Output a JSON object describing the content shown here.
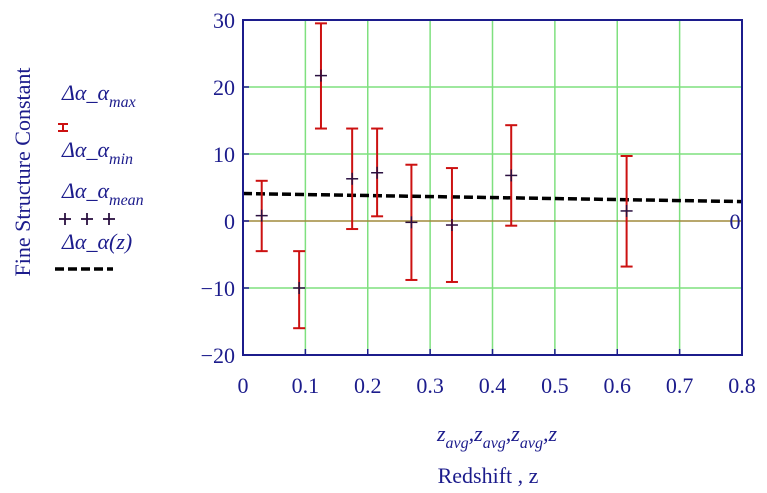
{
  "chart_data": {
    "type": "scatter",
    "ylabel": "Fine Structure Constant",
    "xlabel": "Redshift , z",
    "x_expression": {
      "parts": [
        "z",
        "avg",
        ",",
        "z",
        "avg",
        ",",
        "z",
        "avg",
        ",",
        "z"
      ]
    },
    "xlim": [
      0,
      0.8
    ],
    "ylim": [
      -20,
      30
    ],
    "x_ticks": [
      "0",
      "0.1",
      "0.2",
      "0.3",
      "0.4",
      "0.5",
      "0.6",
      "0.7",
      "0.8"
    ],
    "y_ticks": [
      "30",
      "20",
      "10",
      "0",
      "−10",
      "−20"
    ],
    "zero_marker_label": "0",
    "grid": true,
    "legend_placement": "left",
    "legend": [
      {
        "prefix": "Δα_α",
        "sub": "max",
        "suffix": "",
        "marker": "error-cap"
      },
      {
        "prefix": "Δα_α",
        "sub": "min",
        "suffix": "",
        "marker": "none"
      },
      {
        "prefix": "Δα_α",
        "sub": "mean",
        "suffix": "",
        "marker": "plus"
      },
      {
        "prefix": "Δα_α",
        "sub": "",
        "suffix": "(z)",
        "marker": "dashed"
      }
    ],
    "points": [
      {
        "z": 0.03,
        "max": 6,
        "min": -4.5,
        "mean": 0.8
      },
      {
        "z": 0.09,
        "max": -4.5,
        "min": -16,
        "mean": -10
      },
      {
        "z": 0.125,
        "max": 29.5,
        "min": 13.8,
        "mean": 21.7
      },
      {
        "z": 0.175,
        "max": 13.8,
        "min": -1.2,
        "mean": 6.3
      },
      {
        "z": 0.215,
        "max": 13.8,
        "min": 0.7,
        "mean": 7.2
      },
      {
        "z": 0.27,
        "max": 8.4,
        "min": -8.8,
        "mean": -0.2
      },
      {
        "z": 0.335,
        "max": 7.9,
        "min": -9.1,
        "mean": -0.6
      },
      {
        "z": 0.43,
        "max": 14.3,
        "min": -0.7,
        "mean": 6.8
      },
      {
        "z": 0.615,
        "max": 9.7,
        "min": -6.8,
        "mean": 1.5
      }
    ],
    "model_line": {
      "x": [
        0,
        0.8
      ],
      "y": [
        4.1,
        2.9
      ]
    },
    "colors": {
      "axis": "#1c1c8c",
      "grid": "#7fe07f",
      "error_bars": "#cc1111",
      "mean_points": "#2a1040",
      "model_line": "#000000",
      "zero_line": "#a08a3c"
    }
  }
}
